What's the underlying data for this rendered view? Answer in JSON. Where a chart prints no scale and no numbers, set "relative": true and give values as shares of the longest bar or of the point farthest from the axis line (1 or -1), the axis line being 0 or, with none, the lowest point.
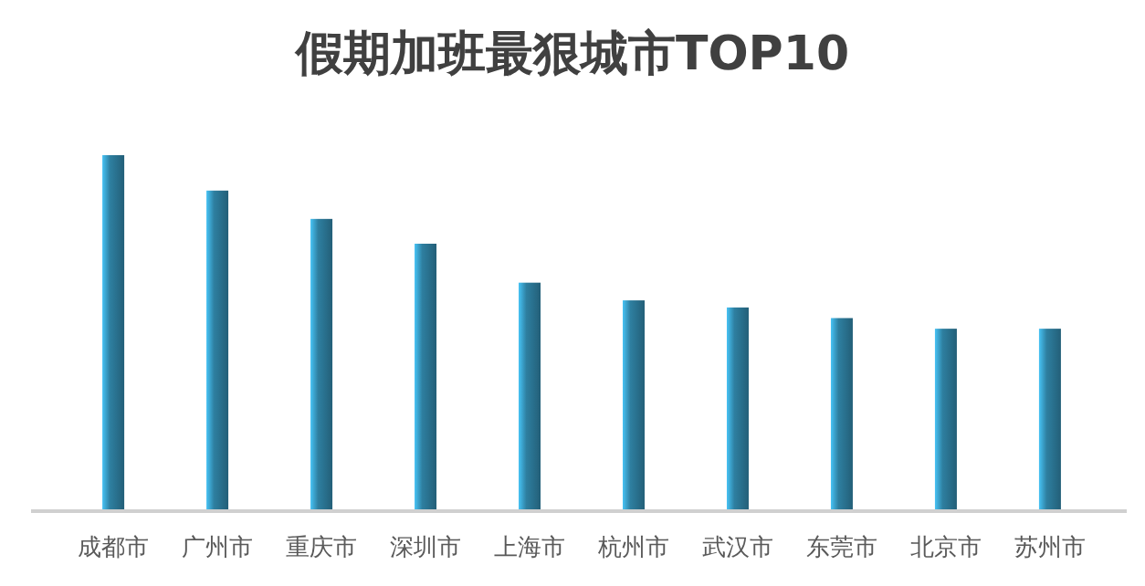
{
  "chart_data": {
    "type": "bar",
    "title": "假期加班最狠城市TOP10",
    "relative": true,
    "categories": [
      "成都市",
      "广州市",
      "重庆市",
      "深圳市",
      "上海市",
      "杭州市",
      "武汉市",
      "东莞市",
      "北京市",
      "苏州市"
    ],
    "values": [
      1,
      0.9,
      0.82,
      0.75,
      0.64,
      0.59,
      0.57,
      0.54,
      0.51,
      0.51
    ],
    "color": "#2e7fa0"
  }
}
